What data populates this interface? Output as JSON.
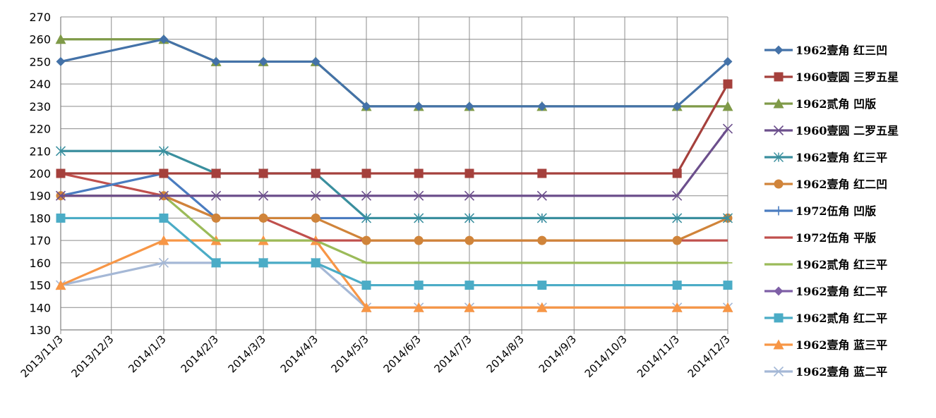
{
  "chart_data": {
    "type": "line",
    "title": "",
    "xlabel": "",
    "ylabel": "",
    "ylim": [
      130,
      270
    ],
    "y_ticks": [
      130,
      140,
      150,
      160,
      170,
      180,
      190,
      200,
      210,
      220,
      230,
      240,
      250,
      260,
      270
    ],
    "x_start": "2013-11-03",
    "x_end": "2014-12-03",
    "x_tick_labels": [
      "2013/11/3",
      "2013/12/3",
      "2014/1/3",
      "2014/2/3",
      "2014/3/3",
      "2014/4/3",
      "2014/5/3",
      "2014/6/3",
      "2014/7/3",
      "2014/8/3",
      "2014/9/3",
      "2014/10/3",
      "2014/11/3",
      "2014/12/3"
    ],
    "x_tick_dates": [
      "2013-11-03",
      "2013-12-03",
      "2014-01-03",
      "2014-02-03",
      "2014-03-03",
      "2014-04-03",
      "2014-05-03",
      "2014-06-03",
      "2014-07-03",
      "2014-08-03",
      "2014-09-03",
      "2014-10-03",
      "2014-11-03",
      "2014-12-03"
    ],
    "grid": true,
    "legend": "right",
    "dates": [
      "2013-11-03",
      "2014-01-03",
      "2014-02-03",
      "2014-03-03",
      "2014-04-03",
      "2014-05-03",
      "2014-06-03",
      "2014-07-03",
      "2014-08-15",
      "2014-11-03",
      "2014-12-03"
    ],
    "series": [
      {
        "name": "1962壹角 红三凹",
        "color": "#4472a8",
        "marker": "diamond",
        "values": [
          250,
          260,
          250,
          250,
          250,
          230,
          230,
          230,
          230,
          230,
          250
        ]
      },
      {
        "name": "1960壹圆 三罗五星",
        "color": "#a5403c",
        "marker": "square",
        "values": [
          200,
          200,
          200,
          200,
          200,
          200,
          200,
          200,
          200,
          200,
          240
        ]
      },
      {
        "name": "1962贰角 凹版",
        "color": "#7f9a48",
        "marker": "triangle",
        "values": [
          260,
          260,
          250,
          250,
          250,
          230,
          230,
          230,
          230,
          230,
          230
        ]
      },
      {
        "name": "1960壹圆 二罗五星",
        "color": "#6c4f8c",
        "marker": "x",
        "values": [
          190,
          190,
          190,
          190,
          190,
          190,
          190,
          190,
          190,
          190,
          220
        ]
      },
      {
        "name": "1962壹角 红三平",
        "color": "#3a8f9e",
        "marker": "star",
        "values": [
          210,
          210,
          200,
          200,
          200,
          180,
          180,
          180,
          180,
          180,
          180
        ]
      },
      {
        "name": "1962壹角 红二凹",
        "color": "#d0843a",
        "marker": "circle",
        "values": [
          190,
          190,
          180,
          180,
          180,
          170,
          170,
          170,
          170,
          170,
          180
        ]
      },
      {
        "name": "1972伍角 凹版",
        "color": "#4a7cc0",
        "marker": "plus",
        "values": [
          190,
          200,
          180,
          180,
          180,
          180,
          180,
          180,
          180,
          180,
          180
        ]
      },
      {
        "name": "1972伍角 平版",
        "color": "#c0504d",
        "marker": "none",
        "values": [
          200,
          190,
          180,
          180,
          170,
          170,
          170,
          170,
          170,
          170,
          170
        ]
      },
      {
        "name": "1962贰角 红三平",
        "color": "#9bbb59",
        "marker": "dash",
        "values": [
          190,
          190,
          170,
          170,
          170,
          160,
          160,
          160,
          160,
          160,
          160
        ]
      },
      {
        "name": "1962壹角 红二平",
        "color": "#7e5fa6",
        "marker": "diamond",
        "values": [
          null,
          null,
          null,
          null,
          null,
          null,
          null,
          null,
          null,
          null,
          null
        ]
      },
      {
        "name": "1962贰角 红二平",
        "color": "#4bacc6",
        "marker": "square",
        "values": [
          180,
          180,
          160,
          160,
          160,
          150,
          150,
          150,
          150,
          150,
          150
        ]
      },
      {
        "name": "1962壹角 蓝三平",
        "color": "#f79646",
        "marker": "triangle",
        "values": [
          150,
          170,
          170,
          170,
          170,
          140,
          140,
          140,
          140,
          140,
          140
        ]
      },
      {
        "name": "1962壹角 蓝二平",
        "color": "#a5b8d6",
        "marker": "x",
        "values": [
          150,
          160,
          160,
          160,
          160,
          140,
          140,
          140,
          140,
          140,
          140
        ]
      }
    ]
  }
}
